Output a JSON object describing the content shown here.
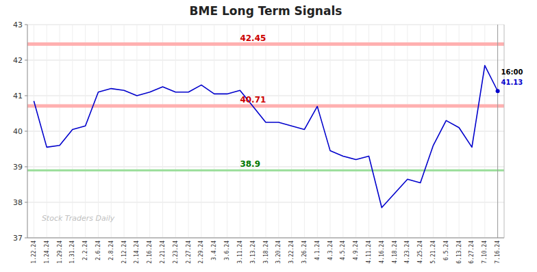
{
  "chart_data": {
    "type": "line",
    "title": "BME Long Term Signals",
    "categories": [
      "1.22.24",
      "1.24.24",
      "1.29.24",
      "1.31.24",
      "2.2.24",
      "2.6.24",
      "2.8.24",
      "2.12.24",
      "2.14.24",
      "2.16.24",
      "2.21.24",
      "2.23.24",
      "2.27.24",
      "2.29.24",
      "3.4.24",
      "3.6.24",
      "3.11.24",
      "3.13.24",
      "3.18.24",
      "3.20.24",
      "3.22.24",
      "3.26.24",
      "4.1.24",
      "4.3.24",
      "4.5.24",
      "4.9.24",
      "4.11.24",
      "4.16.24",
      "4.18.24",
      "4.23.24",
      "4.25.24",
      "5.21.24",
      "6.5.24",
      "6.13.24",
      "6.27.24",
      "7.10.24",
      "7.16.24"
    ],
    "values": [
      40.85,
      39.55,
      39.6,
      40.05,
      40.15,
      41.1,
      41.2,
      41.15,
      41.0,
      41.1,
      41.25,
      41.1,
      41.1,
      41.3,
      41.05,
      41.05,
      41.15,
      40.7,
      40.25,
      40.25,
      40.15,
      40.05,
      40.7,
      39.45,
      39.3,
      39.2,
      39.3,
      37.85,
      38.25,
      38.65,
      38.55,
      39.6,
      40.3,
      40.1,
      39.55,
      41.85,
      41.13
    ],
    "color": "#0000cc",
    "ylim": [
      37,
      43
    ],
    "yticks": [
      37,
      38,
      39,
      40,
      41,
      42,
      43
    ],
    "grid": true,
    "reference_lines": [
      {
        "value": 42.45,
        "label": "42.45",
        "color": "#ffb0b0",
        "label_color": "#cc0000"
      },
      {
        "value": 40.71,
        "label": "40.71",
        "color": "#ffb0b0",
        "label_color": "#cc0000"
      },
      {
        "value": 38.9,
        "label": "38.9",
        "color": "#99dd99",
        "label_color": "#007700"
      }
    ],
    "last_point": {
      "value": 41.13,
      "label": "16:00"
    },
    "watermark": "Stock Traders Daily"
  }
}
